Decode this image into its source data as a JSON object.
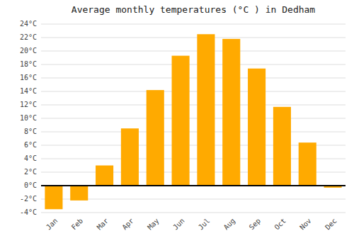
{
  "chart_data": {
    "type": "bar",
    "title": "Average monthly temperatures (°C ) in Dedham",
    "categories": [
      "Jan",
      "Feb",
      "Mar",
      "Apr",
      "May",
      "Jun",
      "Jul",
      "Aug",
      "Sep",
      "Oct",
      "Nov",
      "Dec"
    ],
    "values": [
      -3.5,
      -2.2,
      3.0,
      8.5,
      14.2,
      19.3,
      22.5,
      21.8,
      17.4,
      11.7,
      6.4,
      -0.3
    ],
    "color": "#FFAA00",
    "ylim": [
      -4,
      24
    ],
    "yticks": [
      {
        "value": -4,
        "label": "-4°C"
      },
      {
        "value": -2,
        "label": "-2°C"
      },
      {
        "value": 0,
        "label": "0°C"
      },
      {
        "value": 2,
        "label": "2°C"
      },
      {
        "value": 4,
        "label": "4°C"
      },
      {
        "value": 6,
        "label": "6°C"
      },
      {
        "value": 8,
        "label": "8°C"
      },
      {
        "value": 10,
        "label": "10°C"
      },
      {
        "value": 12,
        "label": "12°C"
      },
      {
        "value": 14,
        "label": "14°C"
      },
      {
        "value": 16,
        "label": "16°C"
      },
      {
        "value": 18,
        "label": "18°C"
      },
      {
        "value": 20,
        "label": "20°C"
      },
      {
        "value": 22,
        "label": "22°C"
      },
      {
        "value": 24,
        "label": "24°C"
      }
    ],
    "grid": true
  }
}
